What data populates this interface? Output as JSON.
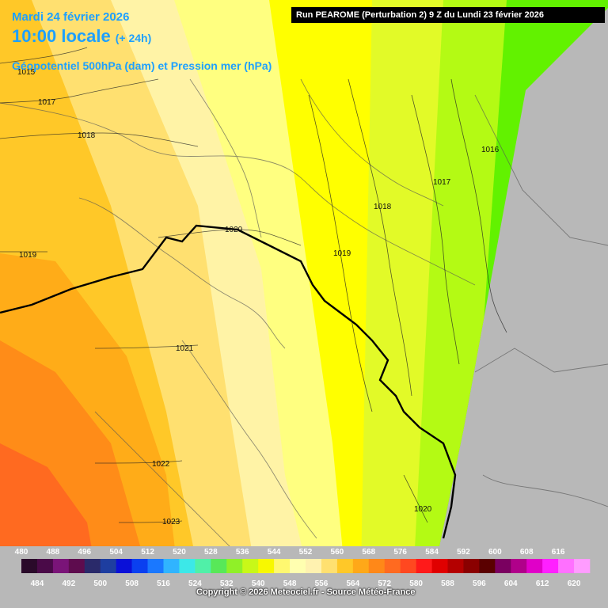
{
  "header": {
    "date": "Mardi 24 février 2026",
    "time": "10:00 locale",
    "lead": "(+ 24h)",
    "parameter": "Géopotentiel 500hPa (dam) et Pression mer (hPa)",
    "run": "Run PEAROME (Perturbation 2) 9 Z du Lundi 23 février 2026"
  },
  "isobar_labels": [
    "1015",
    "1017",
    "1018",
    "1019",
    "1020",
    "1021",
    "1022",
    "1023",
    "1016",
    "1017",
    "1018",
    "1019",
    "1020"
  ],
  "color_scale": {
    "top_labels": [
      "480",
      "488",
      "496",
      "504",
      "512",
      "520",
      "528",
      "536",
      "544",
      "552",
      "560",
      "568",
      "576",
      "584",
      "592",
      "600",
      "608",
      "616"
    ],
    "bottom_labels": [
      "484",
      "492",
      "500",
      "508",
      "516",
      "524",
      "532",
      "540",
      "548",
      "556",
      "564",
      "572",
      "580",
      "588",
      "596",
      "604",
      "612",
      "620"
    ],
    "colors": [
      "#2a0a2a",
      "#4a0a48",
      "#7a1478",
      "#5e0c4e",
      "#2a2a6a",
      "#1e3ea0",
      "#0a10d8",
      "#0a40f0",
      "#1a78ff",
      "#30b4ff",
      "#3ce8e8",
      "#50f0a8",
      "#58e858",
      "#90f028",
      "#c8f818",
      "#f8f800",
      "#fff870",
      "#ffffb0",
      "#fff2b0",
      "#ffe070",
      "#ffc828",
      "#ffa818",
      "#ff8818",
      "#ff6a20",
      "#ff4820",
      "#ff1a1a",
      "#e00000",
      "#b40000",
      "#8a0000",
      "#5a0000",
      "#7a0060",
      "#b0008a",
      "#e000c8",
      "#ff20ff",
      "#ff70ff",
      "#ff9cff"
    ]
  },
  "copyright": "Copyright © 2026 Meteociel.fr - Source Météo-France"
}
